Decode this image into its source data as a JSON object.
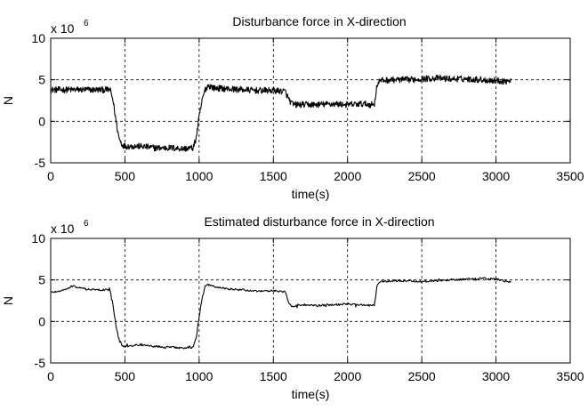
{
  "chart_data": [
    {
      "type": "line",
      "title": "Disturbance force in X-direction",
      "xlabel": "time(s)",
      "ylabel": "N",
      "y_scale_label": "x 10",
      "y_scale_exponent": "6",
      "xlim": [
        0,
        3500
      ],
      "ylim": [
        -5,
        10
      ],
      "xticks": [
        0,
        500,
        1000,
        1500,
        2000,
        2500,
        3000,
        3500
      ],
      "yticks": [
        -5,
        0,
        5,
        10
      ],
      "grid": "dashed",
      "noise": "high",
      "series_color": "#000000",
      "x": [
        0,
        400,
        420,
        440,
        460,
        480,
        500,
        600,
        700,
        800,
        900,
        960,
        980,
        1000,
        1020,
        1040,
        1060,
        1080,
        1100,
        1200,
        1300,
        1400,
        1500,
        1580,
        1600,
        1620,
        1640,
        1660,
        1700,
        1800,
        1900,
        2000,
        2100,
        2180,
        2200,
        2220,
        2300,
        2400,
        2500,
        2600,
        2700,
        2800,
        2900,
        3000,
        3100
      ],
      "values": [
        3.8,
        3.8,
        2.5,
        0.0,
        -2.0,
        -2.8,
        -3.0,
        -3.0,
        -3.2,
        -3.2,
        -3.3,
        -3.2,
        -2.0,
        0.5,
        2.5,
        3.8,
        4.3,
        4.2,
        4.0,
        3.9,
        3.8,
        3.7,
        3.7,
        3.6,
        2.8,
        2.2,
        2.0,
        2.0,
        2.0,
        2.0,
        2.1,
        2.0,
        2.1,
        2.0,
        4.5,
        4.9,
        5.0,
        5.0,
        5.1,
        5.2,
        5.1,
        5.1,
        5.0,
        4.9,
        4.8
      ]
    },
    {
      "type": "line",
      "title": "Estimated disturbance force in X-direction",
      "xlabel": "time(s)",
      "ylabel": "N",
      "y_scale_label": "x 10",
      "y_scale_exponent": "6",
      "xlim": [
        0,
        3500
      ],
      "ylim": [
        -5,
        10
      ],
      "xticks": [
        0,
        500,
        1000,
        1500,
        2000,
        2500,
        3000,
        3500
      ],
      "yticks": [
        -5,
        0,
        5,
        10
      ],
      "grid": "dashed",
      "noise": "low",
      "series_color": "#000000",
      "x": [
        0,
        100,
        150,
        200,
        250,
        300,
        400,
        420,
        440,
        460,
        480,
        500,
        600,
        700,
        800,
        900,
        960,
        980,
        1000,
        1020,
        1040,
        1060,
        1100,
        1200,
        1300,
        1400,
        1500,
        1580,
        1600,
        1620,
        1640,
        1700,
        1800,
        1900,
        2000,
        2100,
        2180,
        2200,
        2220,
        2300,
        2400,
        2500,
        2600,
        2700,
        2800,
        2900,
        3000,
        3100
      ],
      "values": [
        3.5,
        3.8,
        4.3,
        4.0,
        3.9,
        3.8,
        3.8,
        2.0,
        -0.5,
        -2.2,
        -2.9,
        -3.0,
        -2.8,
        -3.0,
        -3.1,
        -3.2,
        -3.1,
        -2.0,
        0.5,
        2.8,
        4.2,
        4.4,
        4.2,
        3.9,
        3.8,
        3.6,
        3.7,
        3.6,
        2.4,
        1.8,
        1.9,
        2.0,
        1.9,
        2.0,
        2.1,
        2.0,
        1.9,
        4.5,
        4.8,
        4.9,
        4.9,
        4.8,
        4.9,
        5.0,
        5.1,
        5.2,
        5.1,
        4.7
      ]
    }
  ]
}
